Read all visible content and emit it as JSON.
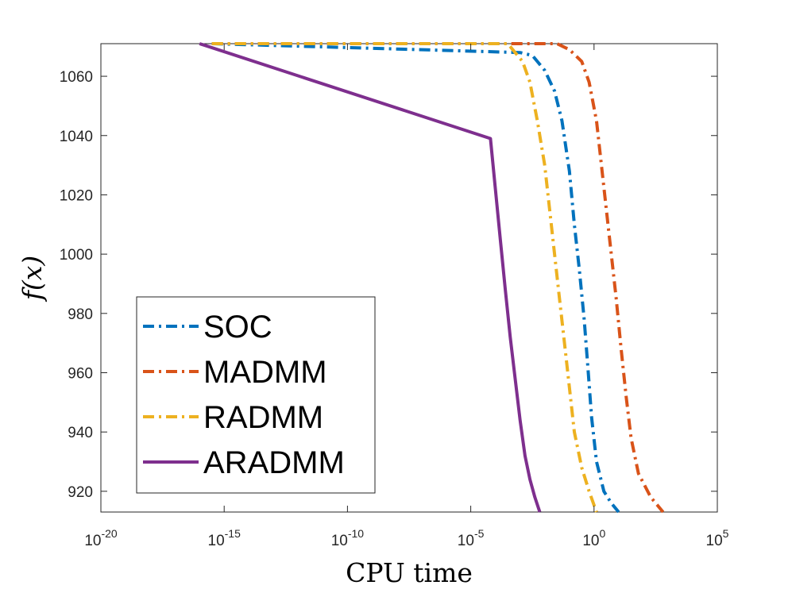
{
  "chart_data": {
    "type": "line",
    "xlabel": "CPU time",
    "ylabel": "f(x)",
    "xscale": "log",
    "xlim_exponent": [
      -20,
      5
    ],
    "ylim": [
      913,
      1071
    ],
    "xticks": [
      {
        "base": "10",
        "exp": "-20"
      },
      {
        "base": "10",
        "exp": "-15"
      },
      {
        "base": "10",
        "exp": "-10"
      },
      {
        "base": "10",
        "exp": "-5"
      },
      {
        "base": "10",
        "exp": "0"
      },
      {
        "base": "10",
        "exp": "5"
      }
    ],
    "yticks": [
      "920",
      "940",
      "960",
      "980",
      "1000",
      "1020",
      "1040",
      "1060"
    ],
    "grid": false,
    "legend_position": "bottom-left",
    "series": [
      {
        "name": "SOC",
        "color": "#0072BD",
        "style": "dashdot",
        "points": [
          [
            -15.5,
            1071
          ],
          [
            -3.0,
            1068
          ],
          [
            -2.5,
            1067
          ],
          [
            -2.0,
            1062
          ],
          [
            -1.6,
            1055
          ],
          [
            -1.3,
            1045
          ],
          [
            -1.0,
            1028
          ],
          [
            -0.8,
            1010
          ],
          [
            -0.6,
            995
          ],
          [
            -0.4,
            978
          ],
          [
            -0.25,
            962
          ],
          [
            -0.1,
            945
          ],
          [
            0.1,
            930
          ],
          [
            0.4,
            920
          ],
          [
            0.7,
            916
          ],
          [
            1.0,
            913
          ]
        ]
      },
      {
        "name": "MADMM",
        "color": "#D95319",
        "style": "dashdot",
        "points": [
          [
            -15.5,
            1071
          ],
          [
            -1.5,
            1071
          ],
          [
            -1.0,
            1069
          ],
          [
            -0.5,
            1065
          ],
          [
            -0.2,
            1058
          ],
          [
            0.1,
            1045
          ],
          [
            0.3,
            1030
          ],
          [
            0.5,
            1015
          ],
          [
            0.7,
            1000
          ],
          [
            0.9,
            985
          ],
          [
            1.1,
            968
          ],
          [
            1.3,
            952
          ],
          [
            1.5,
            938
          ],
          [
            1.8,
            926
          ],
          [
            2.3,
            918
          ],
          [
            2.8,
            913
          ]
        ]
      },
      {
        "name": "RADMM",
        "color": "#EDB120",
        "style": "dashdot",
        "points": [
          [
            -15.5,
            1071
          ],
          [
            -3.5,
            1071
          ],
          [
            -2.9,
            1065
          ],
          [
            -2.6,
            1058
          ],
          [
            -2.3,
            1045
          ],
          [
            -2.0,
            1030
          ],
          [
            -1.8,
            1015
          ],
          [
            -1.6,
            1000
          ],
          [
            -1.4,
            985
          ],
          [
            -1.2,
            970
          ],
          [
            -1.0,
            955
          ],
          [
            -0.8,
            940
          ],
          [
            -0.5,
            928
          ],
          [
            -0.2,
            920
          ],
          [
            0.1,
            913
          ]
        ]
      },
      {
        "name": "ARADMM",
        "color": "#7E2F8E",
        "style": "solid",
        "points": [
          [
            -16.0,
            1071
          ],
          [
            -4.2,
            1039
          ],
          [
            -4.0,
            1022
          ],
          [
            -3.8,
            1005
          ],
          [
            -3.6,
            988
          ],
          [
            -3.4,
            972
          ],
          [
            -3.2,
            958
          ],
          [
            -3.0,
            944
          ],
          [
            -2.8,
            932
          ],
          [
            -2.6,
            924
          ],
          [
            -2.4,
            918
          ],
          [
            -2.2,
            913
          ]
        ]
      }
    ]
  }
}
